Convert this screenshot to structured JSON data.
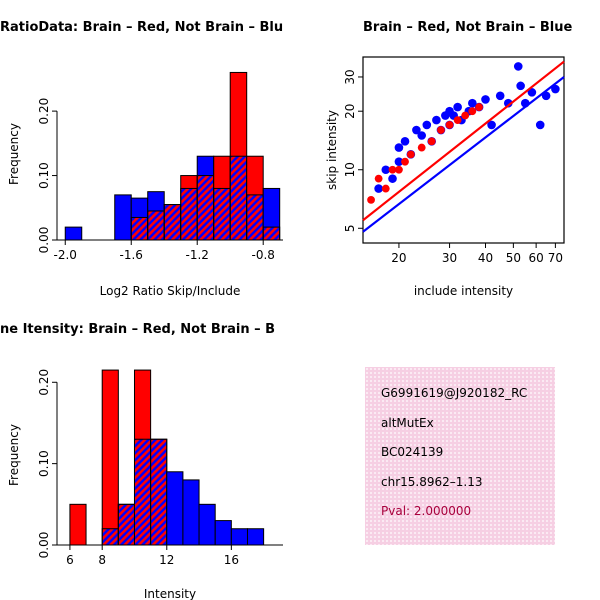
{
  "colors": {
    "red": "#FF0000",
    "blue": "#0000FF",
    "background": "#FFFFFF",
    "info_box_pink": "#F6CFE3",
    "pval_red": "#A8003C"
  },
  "chart_data": [
    {
      "type": "bar",
      "variant": "overlaid-histogram",
      "title": "RatioData: Brain – Red, Not Brain – Blu",
      "xlabel": "Log2 Ratio Skip/Include",
      "ylabel": "Frequency",
      "xlim": [
        -2.05,
        -0.68
      ],
      "ylim": [
        0,
        0.27
      ],
      "bin_start": -2.0,
      "bin_width": 0.1,
      "xticks": [
        -2.0,
        -1.6,
        -1.2,
        -0.8
      ],
      "xtick_labels": [
        "-2.0",
        "-1.6",
        "-1.2",
        "-0.8"
      ],
      "yticks": [
        0,
        0.1,
        0.2
      ],
      "ytick_labels": [
        "0.00",
        "0.10",
        "0.20"
      ],
      "grid": false,
      "series": [
        {
          "name": "Not Brain",
          "color": "#0000FF",
          "values": [
            0.02,
            0,
            0,
            0.07,
            0.065,
            0.075,
            0.055,
            0.08,
            0.13,
            0.08,
            0.13,
            0.07,
            0.08
          ]
        },
        {
          "name": "Brain",
          "color": "#FF0000",
          "values": [
            0,
            0,
            0,
            0,
            0.035,
            0.045,
            0.055,
            0.1,
            0.1,
            0.13,
            0.26,
            0.13,
            0.02
          ]
        }
      ]
    },
    {
      "type": "scatter",
      "title": "Brain – Red, Not Brain – Blue",
      "xlabel": "include intensity",
      "ylabel": "skip intensity",
      "xscale": "log",
      "yscale": "log",
      "xlim": [
        15,
        75
      ],
      "ylim": [
        4.2,
        38
      ],
      "xticks": [
        20,
        30,
        40,
        50,
        60,
        70
      ],
      "xtick_labels": [
        "20",
        "30",
        "40",
        "50",
        "60",
        "70"
      ],
      "yticks": [
        5,
        10,
        20,
        30
      ],
      "ytick_labels": [
        "5",
        "10",
        "20",
        "30"
      ],
      "grid": false,
      "series": [
        {
          "name": "Not Brain",
          "color": "#0000FF",
          "points": [
            [
              17,
              8
            ],
            [
              18,
              10
            ],
            [
              19,
              9
            ],
            [
              20,
              11
            ],
            [
              20,
              13
            ],
            [
              21,
              14
            ],
            [
              22,
              12
            ],
            [
              23,
              16
            ],
            [
              24,
              15
            ],
            [
              25,
              17
            ],
            [
              26,
              14
            ],
            [
              27,
              18
            ],
            [
              28,
              16
            ],
            [
              29,
              19
            ],
            [
              30,
              20
            ],
            [
              30,
              17
            ],
            [
              31,
              19
            ],
            [
              32,
              21
            ],
            [
              33,
              18
            ],
            [
              35,
              20
            ],
            [
              36,
              22
            ],
            [
              38,
              21
            ],
            [
              40,
              23
            ],
            [
              42,
              17
            ],
            [
              45,
              24
            ],
            [
              48,
              22
            ],
            [
              52,
              34
            ],
            [
              53,
              27
            ],
            [
              55,
              22
            ],
            [
              58,
              25
            ],
            [
              62,
              17
            ],
            [
              65,
              24
            ],
            [
              70,
              26
            ]
          ]
        },
        {
          "name": "Brain",
          "color": "#FF0000",
          "points": [
            [
              16,
              7
            ],
            [
              17,
              9
            ],
            [
              18,
              8
            ],
            [
              19,
              10
            ],
            [
              20,
              10
            ],
            [
              21,
              11
            ],
            [
              22,
              12
            ],
            [
              24,
              13
            ],
            [
              26,
              14
            ],
            [
              28,
              16
            ],
            [
              30,
              17
            ],
            [
              32,
              18
            ],
            [
              34,
              19
            ],
            [
              36,
              20
            ],
            [
              38,
              21
            ]
          ]
        }
      ],
      "fit_lines": [
        {
          "color": "#0000FF",
          "x": [
            15,
            75
          ],
          "y": [
            4.8,
            30
          ]
        },
        {
          "color": "#FF0000",
          "x": [
            15,
            75
          ],
          "y": [
            5.5,
            36
          ]
        }
      ]
    },
    {
      "type": "bar",
      "variant": "overlaid-histogram",
      "title": "ne Itensity: Brain – Red, Not Brain – B",
      "xlabel": "Intensity",
      "ylabel": "Frequency",
      "xlim": [
        5.2,
        19.2
      ],
      "ylim": [
        0,
        0.22
      ],
      "bin_start": 6,
      "bin_width": 1,
      "xticks": [
        6,
        8,
        12,
        16
      ],
      "xtick_labels": [
        "6",
        "8",
        "12",
        "16"
      ],
      "yticks": [
        0,
        0.1,
        0.2
      ],
      "ytick_labels": [
        "0.00",
        "0.10",
        "0.20"
      ],
      "grid": false,
      "series": [
        {
          "name": "Not Brain",
          "color": "#0000FF",
          "values": [
            0,
            0,
            0.02,
            0.05,
            0.13,
            0.13,
            0.09,
            0.08,
            0.05,
            0.03,
            0.02,
            0.02
          ]
        },
        {
          "name": "Brain",
          "color": "#FF0000",
          "values": [
            0.05,
            0,
            0.215,
            0.05,
            0.215,
            0.13,
            0,
            0,
            0,
            0,
            0,
            0
          ]
        }
      ]
    }
  ],
  "info_box": {
    "background": "#F6CFE3",
    "lines": [
      {
        "text": "G6991619@J920182_RC",
        "color": "#000000"
      },
      {
        "text": "altMutEx",
        "color": "#000000"
      },
      {
        "text": "BC024139",
        "color": "#000000"
      },
      {
        "text": "chr15.8962–1.13",
        "color": "#000000"
      },
      {
        "text": "Pval: 2.000000",
        "color": "#A8003C"
      }
    ]
  }
}
